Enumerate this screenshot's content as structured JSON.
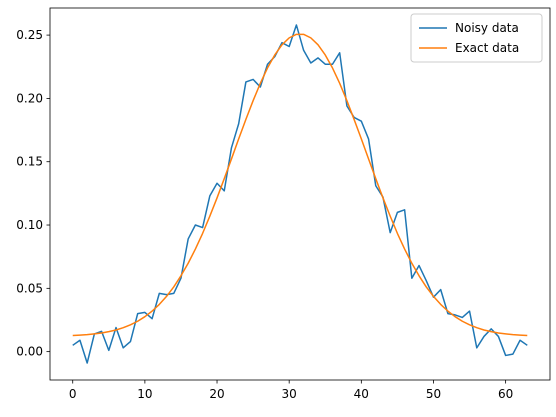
{
  "chart_data": {
    "type": "line",
    "x": [
      0,
      1,
      2,
      3,
      4,
      5,
      6,
      7,
      8,
      9,
      10,
      11,
      12,
      13,
      14,
      15,
      16,
      17,
      18,
      19,
      20,
      21,
      22,
      23,
      24,
      25,
      26,
      27,
      28,
      29,
      30,
      31,
      32,
      33,
      34,
      35,
      36,
      37,
      38,
      39,
      40,
      41,
      42,
      43,
      44,
      45,
      46,
      47,
      48,
      49,
      50,
      51,
      52,
      53,
      54,
      55,
      56,
      57,
      58,
      59,
      60,
      61,
      62,
      63
    ],
    "series": [
      {
        "name": "Noisy data",
        "color": "#1f77b4",
        "values": [
          0.005,
          0.009,
          -0.009,
          0.014,
          0.016,
          0.001,
          0.019,
          0.003,
          0.008,
          0.03,
          0.031,
          0.026,
          0.046,
          0.045,
          0.046,
          0.058,
          0.089,
          0.1,
          0.098,
          0.123,
          0.133,
          0.127,
          0.161,
          0.18,
          0.213,
          0.215,
          0.209,
          0.227,
          0.233,
          0.244,
          0.241,
          0.258,
          0.238,
          0.228,
          0.232,
          0.227,
          0.227,
          0.236,
          0.194,
          0.185,
          0.182,
          0.168,
          0.131,
          0.122,
          0.094,
          0.11,
          0.112,
          0.058,
          0.068,
          0.056,
          0.043,
          0.049,
          0.03,
          0.029,
          0.027,
          0.032,
          0.003,
          0.012,
          0.018,
          0.012,
          -0.003,
          -0.002,
          0.009,
          0.005
        ]
      },
      {
        "name": "Exact data",
        "color": "#ff7f0e",
        "values": [
          0.0127,
          0.013,
          0.0134,
          0.014,
          0.0147,
          0.0158,
          0.0171,
          0.0189,
          0.0212,
          0.024,
          0.0276,
          0.032,
          0.0373,
          0.0436,
          0.0511,
          0.0599,
          0.0698,
          0.081,
          0.0934,
          0.107,
          0.1214,
          0.1366,
          0.1522,
          0.168,
          0.1834,
          0.1982,
          0.2119,
          0.2241,
          0.2343,
          0.2423,
          0.2478,
          0.2506,
          0.2506,
          0.2478,
          0.2423,
          0.2343,
          0.2241,
          0.2119,
          0.1982,
          0.1834,
          0.168,
          0.1522,
          0.1366,
          0.1214,
          0.107,
          0.0934,
          0.081,
          0.0698,
          0.0599,
          0.0511,
          0.0436,
          0.0373,
          0.032,
          0.0276,
          0.024,
          0.0212,
          0.0189,
          0.0171,
          0.0158,
          0.0147,
          0.014,
          0.0134,
          0.013,
          0.0127
        ]
      }
    ],
    "xlim": [
      -3.15,
      66.15
    ],
    "xticks": [
      0,
      10,
      20,
      30,
      40,
      50,
      60
    ],
    "ylim": [
      -0.0224,
      0.2714
    ],
    "yticks": [
      {
        "value": 0,
        "label": "0.00"
      },
      {
        "value": 0.05,
        "label": "0.05"
      },
      {
        "value": 0.1,
        "label": "0.10"
      },
      {
        "value": 0.15,
        "label": "0.15"
      },
      {
        "value": 0.2,
        "label": "0.20"
      },
      {
        "value": 0.25,
        "label": "0.25"
      }
    ],
    "legend": "upper right",
    "grid": false
  }
}
